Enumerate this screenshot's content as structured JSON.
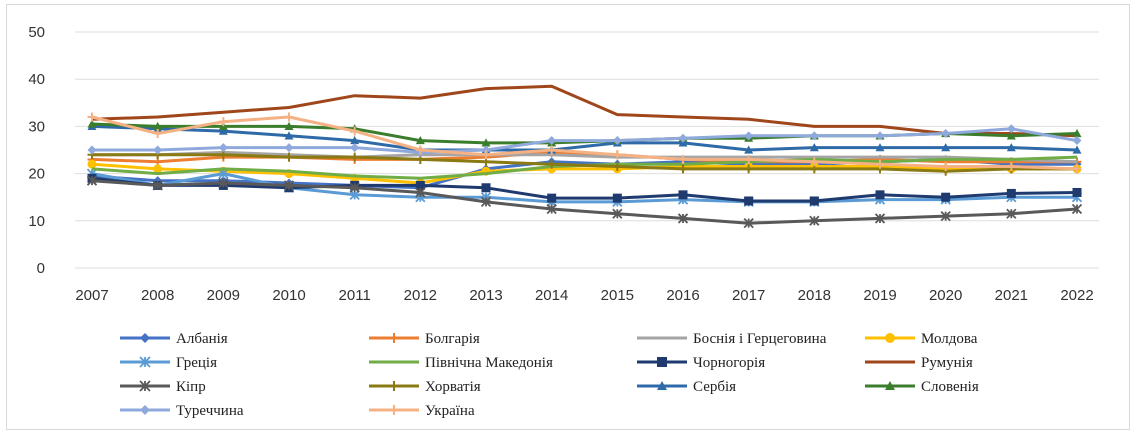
{
  "chart_data": {
    "type": "line",
    "title": "",
    "xlabel": "",
    "ylabel": "",
    "ylim": [
      0,
      50
    ],
    "yticks": [
      0,
      10,
      20,
      30,
      40,
      50
    ],
    "grid": "horizontal",
    "legend_position": "bottom",
    "categories": [
      "2007",
      "2008",
      "2009",
      "2010",
      "2011",
      "2012",
      "2013",
      "2014",
      "2015",
      "2016",
      "2017",
      "2018",
      "2019",
      "2020",
      "2021",
      "2022"
    ],
    "series": [
      {
        "name": "Албанія",
        "color": "#4472c4",
        "marker": "diamond",
        "values": [
          19.5,
          18.5,
          18.5,
          18.0,
          17.5,
          17.0,
          21.0,
          22.5,
          22.0,
          22.5,
          22.0,
          22.0,
          22.5,
          23.0,
          22.0,
          22.0
        ]
      },
      {
        "name": "Болгарія",
        "color": "#ed7d31",
        "marker": "plus",
        "values": [
          23.0,
          22.5,
          23.5,
          23.5,
          23.0,
          23.0,
          23.5,
          24.5,
          24.0,
          23.0,
          22.5,
          22.5,
          23.0,
          22.5,
          22.5,
          22.5
        ]
      },
      {
        "name": "Боснія і Герцеговина",
        "color": "#a5a5a5",
        "marker": "none",
        "values": [
          24.0,
          24.0,
          24.5,
          24.0,
          23.5,
          24.0,
          24.0,
          24.0,
          23.5,
          23.5,
          23.5,
          23.5,
          23.5,
          23.5,
          23.0,
          22.5
        ]
      },
      {
        "name": "Молдова",
        "color": "#ffc000",
        "marker": "circle",
        "values": [
          22.0,
          21.0,
          20.5,
          20.0,
          19.0,
          18.0,
          20.5,
          21.0,
          21.0,
          21.5,
          21.5,
          21.5,
          21.5,
          21.0,
          21.0,
          21.0
        ]
      },
      {
        "name": "Греція",
        "color": "#5b9bd5",
        "marker": "star",
        "values": [
          20.0,
          17.5,
          20.0,
          17.0,
          15.5,
          15.0,
          15.0,
          14.0,
          14.0,
          14.5,
          14.0,
          14.0,
          14.5,
          14.5,
          15.0,
          15.0
        ]
      },
      {
        "name": "Північна Македонія",
        "color": "#70ad47",
        "marker": "none",
        "values": [
          21.0,
          20.0,
          21.0,
          20.5,
          19.5,
          19.0,
          20.0,
          21.5,
          22.0,
          22.0,
          22.5,
          23.0,
          22.5,
          23.0,
          23.0,
          23.5
        ]
      },
      {
        "name": "Чорногорія",
        "color": "#1f3a6e",
        "marker": "square",
        "values": [
          19.0,
          17.5,
          17.5,
          17.0,
          17.5,
          17.5,
          17.0,
          14.8,
          14.8,
          15.5,
          14.2,
          14.2,
          15.5,
          15.0,
          15.8,
          16.0
        ]
      },
      {
        "name": "Румунія",
        "color": "#a0461b",
        "marker": "none",
        "values": [
          31.5,
          32.0,
          33.0,
          34.0,
          36.5,
          36.0,
          38.0,
          38.5,
          32.5,
          32.0,
          31.5,
          30.0,
          30.0,
          28.5,
          28.5,
          28.0
        ]
      },
      {
        "name": "Кіпр",
        "color": "#595959",
        "marker": "star",
        "values": [
          18.5,
          17.5,
          18.0,
          17.5,
          17.0,
          16.0,
          14.0,
          12.5,
          11.5,
          10.5,
          9.5,
          10.0,
          10.5,
          11.0,
          11.5,
          12.5
        ]
      },
      {
        "name": "Хорватія",
        "color": "#8a7a14",
        "marker": "plus",
        "values": [
          24.0,
          24.0,
          24.0,
          23.5,
          23.5,
          23.0,
          22.5,
          22.0,
          21.5,
          21.0,
          21.0,
          21.0,
          21.0,
          20.5,
          21.0,
          21.0
        ]
      },
      {
        "name": "Сербія",
        "color": "#2e6aa8",
        "marker": "triangle",
        "values": [
          30.0,
          29.5,
          29.0,
          28.0,
          27.0,
          25.0,
          25.0,
          25.0,
          26.5,
          26.5,
          25.0,
          25.5,
          25.5,
          25.5,
          25.5,
          25.0
        ]
      },
      {
        "name": "Словенія",
        "color": "#3a7d2c",
        "marker": "triangle",
        "values": [
          30.5,
          30.0,
          30.0,
          30.0,
          29.5,
          27.0,
          26.5,
          26.5,
          27.0,
          27.5,
          27.5,
          28.0,
          28.0,
          28.5,
          28.0,
          28.5
        ]
      },
      {
        "name": "Туреччина",
        "color": "#8fa9dc",
        "marker": "diamond",
        "values": [
          25.0,
          25.0,
          25.5,
          25.5,
          25.5,
          24.5,
          25.0,
          27.0,
          27.0,
          27.5,
          28.0,
          28.0,
          28.0,
          28.5,
          29.5,
          27.0
        ]
      },
      {
        "name": "Україна",
        "color": "#f4b183",
        "marker": "plus",
        "values": [
          32.0,
          28.5,
          31.0,
          32.0,
          29.0,
          25.0,
          24.0,
          25.0,
          24.0,
          23.0,
          23.0,
          22.5,
          22.0,
          21.5,
          21.5,
          21.0
        ]
      }
    ]
  }
}
